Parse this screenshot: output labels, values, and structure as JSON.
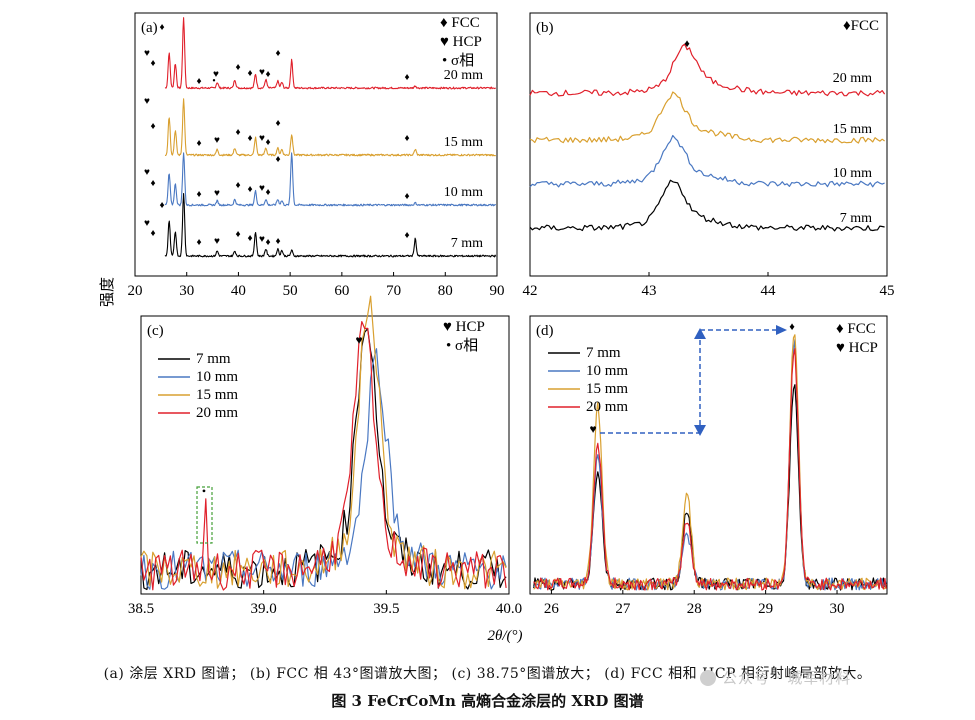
{
  "colors": {
    "s7": "#000000",
    "s10": "#4a78c2",
    "s15": "#d9a030",
    "s20": "#e0202b",
    "arrow": "#3060c0",
    "dashbox": "#46a13a"
  },
  "yaxis_label": "强度",
  "xaxis_label": "2θ/(°)",
  "caption": {
    "sub": "(a) 涂层 XRD 图谱；  (b) FCC 相 43°图谱放大图；  (c) 38.75°图谱放大；  (d) FCC 相和 HCP 相衍射峰局部放大。",
    "main": "图 3    FeCrCoMn 高熵合金涂层的 XRD 图谱",
    "watermark": "公众号 · 城军材料"
  },
  "symbols": {
    "fcc": "♦",
    "hcp": "♥",
    "sigma": "•"
  },
  "chart_data": [
    {
      "panel": "(a)",
      "type": "line",
      "xlim": [
        20,
        90
      ],
      "xticks": [
        "20",
        "30",
        "40",
        "50",
        "60",
        "70",
        "80",
        "90"
      ],
      "legend": [
        "FCC",
        "HCP",
        "σ相"
      ],
      "series": [
        {
          "name": "20 mm",
          "color": "#e0202b",
          "peaks": [
            [
              26.6,
              0.5
            ],
            [
              27.8,
              0.35
            ],
            [
              29.4,
              1.0
            ],
            [
              35.9,
              0.08
            ],
            [
              39.3,
              0.12
            ],
            [
              43.3,
              0.2
            ],
            [
              45.3,
              0.12
            ],
            [
              47.6,
              0.1
            ],
            [
              48.4,
              0.08
            ],
            [
              50.3,
              0.4
            ],
            [
              74.2,
              0.03
            ]
          ]
        },
        {
          "name": "15 mm",
          "color": "#d9a030",
          "peaks": [
            [
              26.6,
              0.55
            ],
            [
              27.8,
              0.35
            ],
            [
              29.4,
              0.8
            ],
            [
              35.9,
              0.08
            ],
            [
              39.3,
              0.1
            ],
            [
              43.3,
              0.25
            ],
            [
              45.3,
              0.1
            ],
            [
              47.6,
              0.1
            ],
            [
              48.4,
              0.08
            ],
            [
              50.3,
              0.3
            ],
            [
              74.2,
              0.08
            ]
          ]
        },
        {
          "name": "10 mm",
          "color": "#4a78c2",
          "peaks": [
            [
              26.6,
              0.45
            ],
            [
              27.8,
              0.3
            ],
            [
              29.4,
              0.75
            ],
            [
              35.9,
              0.06
            ],
            [
              39.3,
              0.08
            ],
            [
              43.3,
              0.2
            ],
            [
              45.3,
              0.08
            ],
            [
              47.6,
              0.08
            ],
            [
              48.4,
              0.06
            ],
            [
              50.3,
              0.75
            ],
            [
              74.2,
              0.03
            ]
          ]
        },
        {
          "name": "7 mm",
          "color": "#000000",
          "peaks": [
            [
              26.6,
              0.5
            ],
            [
              27.8,
              0.35
            ],
            [
              29.4,
              0.9
            ],
            [
              35.9,
              0.07
            ],
            [
              39.3,
              0.07
            ],
            [
              43.3,
              0.35
            ],
            [
              45.3,
              0.1
            ],
            [
              47.6,
              0.1
            ],
            [
              48.4,
              0.08
            ],
            [
              50.3,
              0.08
            ],
            [
              74.2,
              0.25
            ]
          ]
        }
      ]
    },
    {
      "panel": "(b)",
      "type": "line",
      "xlim": [
        42,
        45
      ],
      "xticks": [
        "42",
        "43",
        "44",
        "45"
      ],
      "legend": [
        "FCC"
      ],
      "series": [
        {
          "name": "20 mm",
          "color": "#e0202b",
          "center": 43.3
        },
        {
          "name": "15 mm",
          "color": "#d9a030",
          "center": 43.2
        },
        {
          "name": "10 mm",
          "color": "#4a78c2",
          "center": 43.2
        },
        {
          "name": "7 mm",
          "color": "#000000",
          "center": 43.2
        }
      ]
    },
    {
      "panel": "(c)",
      "type": "line",
      "xlim": [
        38.5,
        40.0
      ],
      "xticks": [
        "38.5",
        "39.0",
        "39.5",
        "40.0"
      ],
      "legend": [
        "HCP",
        "σ相"
      ],
      "series": [
        {
          "name": "7 mm",
          "color": "#000000"
        },
        {
          "name": "10 mm",
          "color": "#4a78c2"
        },
        {
          "name": "15 mm",
          "color": "#d9a030"
        },
        {
          "name": "20 mm",
          "color": "#e0202b"
        }
      ],
      "annotation": {
        "x": 38.75,
        "label": "σ"
      }
    },
    {
      "panel": "(d)",
      "type": "line",
      "xlim": [
        25.7,
        30.7
      ],
      "xticks": [
        "26",
        "27",
        "28",
        "29",
        "30"
      ],
      "legend": [
        "FCC",
        "HCP"
      ],
      "series": [
        {
          "name": "7 mm",
          "color": "#000000",
          "peaks": [
            [
              26.65,
              0.45
            ],
            [
              27.9,
              0.28
            ],
            [
              29.4,
              0.78
            ]
          ]
        },
        {
          "name": "10 mm",
          "color": "#4a78c2",
          "peaks": [
            [
              26.65,
              0.5
            ],
            [
              27.9,
              0.2
            ],
            [
              29.4,
              0.95
            ]
          ]
        },
        {
          "name": "15 mm",
          "color": "#d9a030",
          "peaks": [
            [
              26.65,
              0.7
            ],
            [
              27.9,
              0.35
            ],
            [
              29.4,
              1.0
            ]
          ]
        },
        {
          "name": "20 mm",
          "color": "#e0202b",
          "peaks": [
            [
              26.65,
              0.55
            ],
            [
              27.9,
              0.25
            ],
            [
              29.4,
              0.92
            ]
          ]
        }
      ]
    }
  ]
}
